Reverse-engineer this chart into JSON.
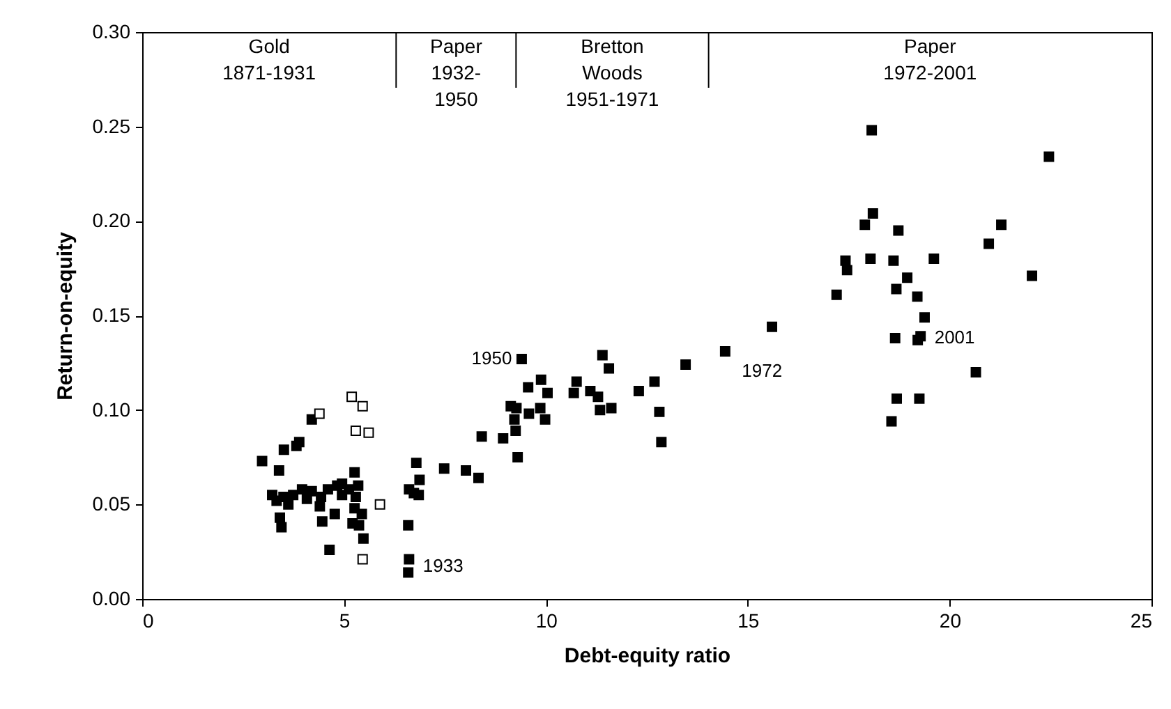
{
  "chart_data": {
    "type": "scatter",
    "xlabel": "Debt-equity ratio",
    "ylabel": "Return-on-equity",
    "marker": "square",
    "xlim": [
      0,
      25
    ],
    "xticks": [
      0,
      5,
      10,
      15,
      20,
      25
    ],
    "ylim": [
      0,
      0.3
    ],
    "yticks": [
      {
        "value": 0,
        "label": "0.00"
      },
      {
        "value": 0.05,
        "label": "0.05"
      },
      {
        "value": 0.1,
        "label": "0.10"
      },
      {
        "value": 0.15,
        "label": "0.15"
      },
      {
        "value": 0.2,
        "label": "0.20"
      },
      {
        "value": 0.25,
        "label": "0.25"
      },
      {
        "value": 0.3,
        "label": "0.30"
      }
    ],
    "series": [
      {
        "color": "#000000",
        "x": [
          4.2,
          3.51,
          3.82,
          3.89,
          2.97,
          3.39,
          5.26,
          3.22,
          3.5,
          3.74,
          3.96,
          4.2,
          4.43,
          4.6,
          4.83,
          4.95,
          5.12,
          5.35,
          5.29,
          3.33,
          3.62,
          4.08,
          4.95,
          3.41,
          3.45,
          4.4,
          4.46,
          4.77,
          5.26,
          5.21,
          5.37,
          5.44,
          5.48,
          4.64,
          6.79,
          6.61,
          6.59,
          6.61,
          6.59,
          6.73,
          6.85,
          6.87,
          7.48,
          8.02,
          8.33,
          9.4,
          11.4,
          11.56,
          13.46,
          14.44,
          9.56,
          9.88,
          10.04,
          10.76,
          10.69,
          11.1,
          11.29,
          12.3,
          12.69,
          9.13,
          9.27,
          9.22,
          9.58,
          9.86,
          9.98,
          11.34,
          11.62,
          12.81,
          12.86,
          9.25,
          8.41,
          8.94,
          9.3,
          15.6,
          18.07,
          22.46,
          18.1,
          17.9,
          18.73,
          21.28,
          20.97,
          17.42,
          17.46,
          18.04,
          18.61,
          19.61,
          18.95,
          22.04,
          17.2,
          18.68,
          19.2,
          19.38,
          18.65,
          19.28,
          19.21,
          20.65,
          18.69,
          19.25,
          18.56
        ],
        "values": [
          0.095,
          0.079,
          0.081,
          0.083,
          0.073,
          0.068,
          0.067,
          0.055,
          0.054,
          0.055,
          0.058,
          0.057,
          0.054,
          0.058,
          0.06,
          0.061,
          0.058,
          0.06,
          0.054,
          0.052,
          0.05,
          0.053,
          0.055,
          0.043,
          0.038,
          0.049,
          0.041,
          0.045,
          0.048,
          0.04,
          0.039,
          0.045,
          0.032,
          0.026,
          0.072,
          0.058,
          0.039,
          0.021,
          0.014,
          0.056,
          0.055,
          0.063,
          0.069,
          0.068,
          0.064,
          0.127,
          0.129,
          0.122,
          0.124,
          0.131,
          0.112,
          0.116,
          0.109,
          0.115,
          0.109,
          0.11,
          0.107,
          0.11,
          0.115,
          0.102,
          0.101,
          0.095,
          0.098,
          0.101,
          0.095,
          0.1,
          0.101,
          0.099,
          0.083,
          0.089,
          0.086,
          0.085,
          0.075,
          0.144,
          0.248,
          0.234,
          0.204,
          0.198,
          0.195,
          0.198,
          0.188,
          0.179,
          0.174,
          0.18,
          0.179,
          0.18,
          0.17,
          0.171,
          0.161,
          0.164,
          0.16,
          0.149,
          0.138,
          0.139,
          0.137,
          0.12,
          0.106,
          0.106,
          0.094
        ]
      },
      {
        "color": "#ffffff",
        "x": [
          5.19,
          5.46,
          4.39,
          5.29,
          5.61,
          5.89,
          5.46
        ],
        "values": [
          0.107,
          0.102,
          0.098,
          0.089,
          0.088,
          0.05,
          0.021
        ]
      }
    ],
    "ref_lines": [
      {
        "axis": "x",
        "value": 6.29
      },
      {
        "axis": "x",
        "value": 9.26
      },
      {
        "axis": "x",
        "value": 14.03
      }
    ],
    "annotations": [
      "Gold\n1871-1931",
      "Paper\n1932-\n1950",
      "Bretton\nWoods\n1951-1971",
      "Paper\n1972-2001",
      {
        "text": "1933",
        "x": 6.61,
        "y": 0.021
      },
      {
        "text": "1950",
        "x": 9.4,
        "y": 0.127
      },
      {
        "text": "1972",
        "x": 14.44,
        "y": 0.131
      },
      {
        "text": "2001",
        "x": 19.28,
        "y": 0.139
      }
    ]
  }
}
